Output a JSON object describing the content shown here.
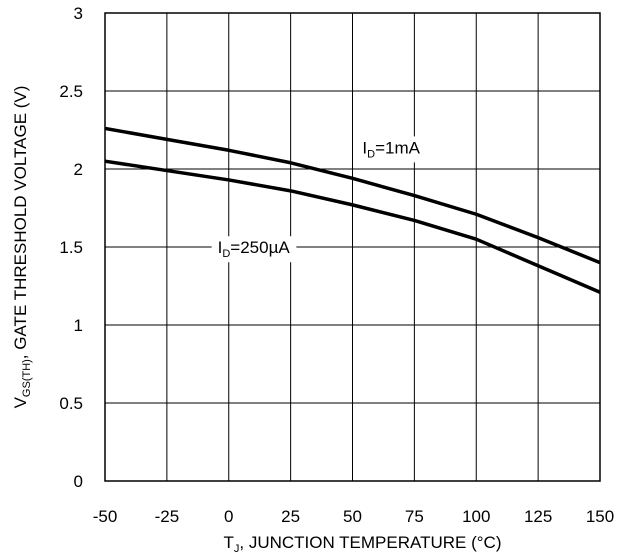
{
  "chart_data": {
    "type": "line",
    "title": "",
    "xlabel": {
      "prefix": "T",
      "subscript": "J",
      "rest": ", JUNCTION TEMPERATURE (°C)"
    },
    "ylabel": {
      "prefix": "V",
      "subscript": "GS(TH)",
      "rest": ", GATE THRESHOLD VOLTAGE (V)"
    },
    "xlim": [
      -50,
      150
    ],
    "ylim": [
      0,
      3
    ],
    "xticks": [
      -50,
      -25,
      0,
      25,
      50,
      75,
      100,
      125,
      150
    ],
    "xtick_labels": [
      "-50",
      "-25",
      "0",
      "25",
      "50",
      "75",
      "100",
      "125",
      "150"
    ],
    "yticks": [
      0,
      0.5,
      1,
      1.5,
      2,
      2.5,
      3
    ],
    "ytick_labels": [
      "0",
      "0.5",
      "1",
      "1.5",
      "2",
      "2.5",
      "3"
    ],
    "grid": true,
    "series": [
      {
        "name": "ID=1mA",
        "label": {
          "prefix": "I",
          "subscript": "D",
          "rest": "=1mA"
        },
        "x": [
          -50,
          -25,
          0,
          25,
          50,
          75,
          100,
          125,
          150
        ],
        "y": [
          2.26,
          2.19,
          2.12,
          2.04,
          1.94,
          1.83,
          1.71,
          1.56,
          1.4
        ]
      },
      {
        "name": "ID=250µA",
        "label": {
          "prefix": "I",
          "subscript": "D",
          "rest": "=250µA"
        },
        "x": [
          -50,
          -25,
          0,
          25,
          50,
          75,
          100,
          125,
          150
        ],
        "y": [
          2.05,
          1.99,
          1.93,
          1.86,
          1.77,
          1.67,
          1.55,
          1.38,
          1.21
        ]
      }
    ]
  }
}
